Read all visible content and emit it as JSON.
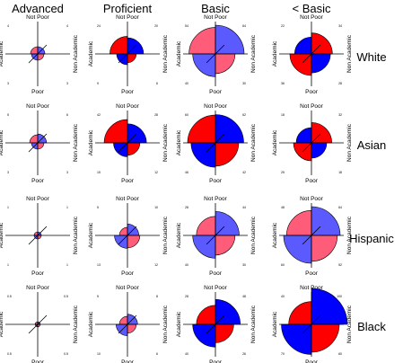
{
  "chart_data": {
    "type": "fourfold-display",
    "columns": [
      "Advanced",
      "Proficient",
      "Basic",
      "< Basic"
    ],
    "rows": [
      "White",
      "Asian",
      "Hispanic",
      "Black"
    ],
    "axis_labels": {
      "top": "Not Poor",
      "bottom": "Poor",
      "left": "Academic",
      "right": "Non Academic"
    },
    "quadrant_order": [
      "Not Poor / Academic",
      "Not Poor / Non Academic",
      "Poor / Academic",
      "Poor / Non Academic"
    ],
    "colors": {
      "strong_red": "#ff0000",
      "strong_blue": "#0000ff",
      "light_red": "#ff5c7a",
      "light_blue": "#5a5aff"
    },
    "cells": [
      [
        {
          "values": [
            4,
            4,
            3,
            3
          ],
          "colors": [
            "#ff5c7a",
            "#5a5aff",
            "#5a5aff",
            "#ff5c7a"
          ]
        },
        {
          "values": [
            24,
            20,
            9,
            6
          ],
          "colors": [
            "#ff0000",
            "#0000ff",
            "#0000ff",
            "#ff0000"
          ]
        },
        {
          "values": [
            54,
            64,
            40,
            30
          ],
          "colors": [
            "#ff5c7a",
            "#5a5aff",
            "#5a5aff",
            "#ff5c7a"
          ]
        },
        {
          "values": [
            22,
            34,
            36,
            28
          ],
          "colors": [
            "#0000ff",
            "#ff0000",
            "#ff0000",
            "#0000ff"
          ]
        }
      ],
      [
        {
          "values": [
            5,
            6,
            3,
            3
          ],
          "colors": [
            "#ff5c7a",
            "#5a5aff",
            "#5a5aff",
            "#ff5c7a"
          ]
        },
        {
          "values": [
            42,
            28,
            15,
            12
          ],
          "colors": [
            "#ff0000",
            "#0000ff",
            "#0000ff",
            "#ff0000"
          ]
        },
        {
          "values": [
            60,
            62,
            46,
            42
          ],
          "colors": [
            "#ff0000",
            "#0000ff",
            "#0000ff",
            "#ff0000"
          ]
        },
        {
          "values": [
            18,
            32,
            25,
            18
          ],
          "colors": [
            "#0000ff",
            "#ff0000",
            "#ff0000",
            "#0000ff"
          ]
        }
      ],
      [
        {
          "values": [
            1,
            1,
            1,
            1
          ],
          "colors": [
            "#ff5c7a",
            "#5a5aff",
            "#5a5aff",
            "#ff5c7a"
          ]
        },
        {
          "values": [
            5,
            10,
            13,
            12
          ],
          "colors": [
            "#ff5c7a",
            "#5a5aff",
            "#5a5aff",
            "#ff5c7a"
          ]
        },
        {
          "values": [
            28,
            44,
            40,
            30
          ],
          "colors": [
            "#ff5c7a",
            "#5a5aff",
            "#5a5aff",
            "#ff5c7a"
          ]
        },
        {
          "values": [
            48,
            64,
            60,
            52
          ],
          "colors": [
            "#ff5c7a",
            "#5a5aff",
            "#5a5aff",
            "#ff5c7a"
          ]
        }
      ],
      [
        {
          "values": [
            0.5,
            0.5,
            0.5,
            0.5
          ],
          "colors": [
            "#ff5c7a",
            "#5a5aff",
            "#5a5aff",
            "#ff5c7a"
          ]
        },
        {
          "values": [
            5,
            8,
            10,
            6
          ],
          "colors": [
            "#ff5c7a",
            "#5a5aff",
            "#5a5aff",
            "#ff5c7a"
          ]
        },
        {
          "values": [
            28,
            48,
            40,
            26
          ],
          "colors": [
            "#ff0000",
            "#0000ff",
            "#0000ff",
            "#ff0000"
          ]
        },
        {
          "values": [
            40,
            100,
            70,
            60
          ],
          "colors": [
            "#ff0000",
            "#0000ff",
            "#0000ff",
            "#ff0000"
          ]
        }
      ]
    ]
  }
}
